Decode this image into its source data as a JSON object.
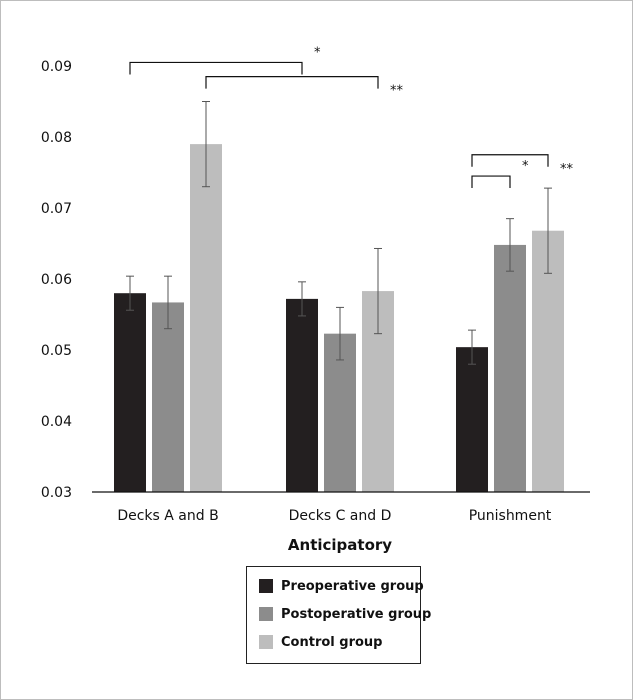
{
  "chart_data": {
    "type": "bar",
    "title": "",
    "xlabel": "Anticipatory",
    "ylabel": "",
    "ylim": [
      0.03,
      0.09
    ],
    "yticks": [
      "0.03",
      "0.04",
      "0.05",
      "0.06",
      "0.07",
      "0.08",
      "0.09"
    ],
    "categories": [
      "Decks A and B",
      "Decks C and D",
      "Punishment"
    ],
    "series": [
      {
        "name": "Preoperative group",
        "color": "#231f20",
        "values": [
          0.058,
          0.0572,
          0.0504
        ],
        "errors": [
          0.0024,
          0.0024,
          0.0024
        ]
      },
      {
        "name": "Postoperative group",
        "color": "#8c8c8c",
        "values": [
          0.0567,
          0.0523,
          0.0648
        ],
        "errors": [
          0.0037,
          0.0037,
          0.0037
        ]
      },
      {
        "name": "Control group",
        "color": "#bdbdbd",
        "values": [
          0.079,
          0.0583,
          0.0668
        ],
        "errors": [
          0.006,
          0.006,
          0.006
        ]
      }
    ],
    "grid": false,
    "legend_position": "bottom-center",
    "significance": [
      {
        "label": "*",
        "from": [
          0,
          0
        ],
        "to": [
          1,
          0
        ],
        "level": 0.0905
      },
      {
        "label": "**",
        "from": [
          0,
          2
        ],
        "to": [
          1,
          2
        ],
        "level": 0.0885
      },
      {
        "label": "*",
        "from": [
          2,
          0
        ],
        "to": [
          2,
          1
        ],
        "level": 0.0745
      },
      {
        "label": "**",
        "from": [
          2,
          0
        ],
        "to": [
          2,
          2
        ],
        "level": 0.0775
      }
    ]
  }
}
